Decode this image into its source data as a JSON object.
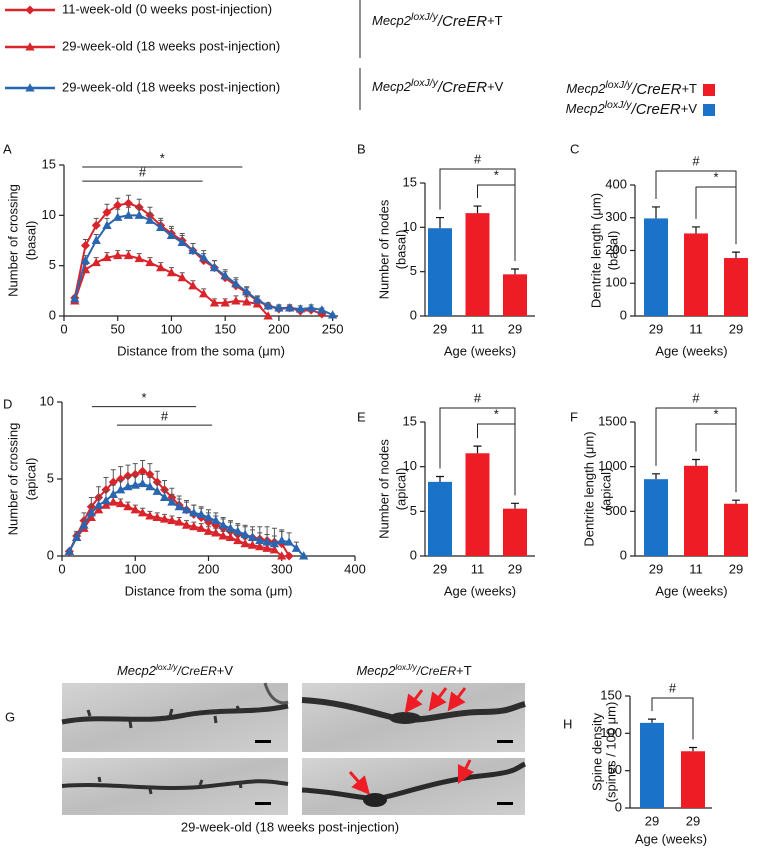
{
  "figure_legend": {
    "groups": [
      {
        "gene": "Mecp2",
        "allele": "loxJ/y",
        "driver": "/CreER",
        "treatment": "+T"
      },
      {
        "gene": "Mecp2",
        "allele": "loxJ/y",
        "driver": "/CreER",
        "treatment": "+V"
      }
    ]
  },
  "bar_legend": {
    "entries": [
      {
        "gene": "Mecp2",
        "allele": "loxJ/y",
        "driver": "/CreER",
        "treatment": "+T",
        "color": "#ee1c24"
      },
      {
        "gene": "Mecp2",
        "allele": "loxJ/y",
        "driver": "/CreER",
        "treatment": "+V",
        "color": "#1a73c8"
      }
    ]
  },
  "chart_data": [
    {
      "type": "line",
      "panel": "A",
      "xlabel": "Distance from the soma (μm)",
      "ylabel": [
        "Number of crossing",
        "(basal)"
      ],
      "x": [
        10,
        20,
        30,
        40,
        50,
        60,
        70,
        80,
        90,
        100,
        110,
        120,
        130,
        140,
        150,
        160,
        170,
        180,
        190,
        200,
        210,
        220,
        230,
        240,
        250
      ],
      "xlim": [
        0,
        255
      ],
      "xticks": [
        0,
        50,
        100,
        150,
        200,
        250
      ],
      "ylim": [
        0,
        15
      ],
      "yticks": [
        0,
        5,
        10,
        15
      ],
      "series": [
        {
          "name": "11-week-old (0 weeks post-injection)",
          "color": "#d9242b",
          "marker": "diamond",
          "values": [
            1.8,
            7,
            9,
            10.3,
            11,
            11.2,
            10.8,
            10,
            9,
            8.2,
            7.5,
            6.5,
            5.5,
            4.8,
            3.8,
            3,
            2.3,
            1.5,
            1,
            0.7,
            0.8,
            0.5,
            0.6,
            0.2,
            null
          ],
          "errors": [
            0.2,
            0.6,
            0.7,
            0.8,
            0.7,
            0.8,
            0.8,
            0.8,
            0.7,
            0.7,
            0.7,
            0.7,
            0.7,
            0.7,
            0.6,
            0.6,
            0.5,
            0.4,
            0.3,
            0.3,
            0.3,
            0.2,
            0.3,
            0.2,
            null
          ]
        },
        {
          "name": "29-week-old (18 weeks post-injection)",
          "color": "#d9242b",
          "marker": "triangle",
          "values": [
            1.5,
            4.6,
            5.3,
            5.8,
            6,
            6,
            5.7,
            5.3,
            4.8,
            4.3,
            3.8,
            3,
            2.2,
            1.3,
            1.3,
            1.5,
            1.4,
            1.2,
            0,
            null,
            null,
            null,
            null,
            null,
            null
          ],
          "errors": [
            0.2,
            0.5,
            0.5,
            0.5,
            0.5,
            0.5,
            0.5,
            0.5,
            0.5,
            0.5,
            0.5,
            0.5,
            0.5,
            0.4,
            0.4,
            0.5,
            0.5,
            0.4,
            0,
            null,
            null,
            null,
            null,
            null,
            null
          ]
        },
        {
          "name": "29-week-old (18 weeks post-injection)",
          "color": "#2a66b0",
          "marker": "triangle",
          "values": [
            1.7,
            5.5,
            7.5,
            9,
            9.8,
            10,
            10,
            9.5,
            8.8,
            8,
            7.3,
            6.5,
            5.8,
            4.8,
            4,
            3.2,
            2.4,
            1.6,
            1,
            0.8,
            0.8,
            0.7,
            0.8,
            0.6,
            0.1
          ],
          "errors": [
            0.2,
            0.5,
            0.6,
            0.7,
            0.8,
            0.8,
            0.8,
            0.7,
            0.7,
            0.7,
            0.7,
            0.7,
            0.7,
            0.7,
            0.6,
            0.6,
            0.5,
            0.4,
            0.3,
            0.3,
            0.3,
            0.3,
            0.3,
            0.2,
            0.1
          ]
        }
      ],
      "annotations": [
        {
          "text": "*",
          "x": [
            17,
            166
          ],
          "y": 14.8
        },
        {
          "text": "#",
          "x": [
            17,
            129
          ],
          "y": 13.4
        }
      ]
    },
    {
      "type": "bar",
      "panel": "B",
      "xlabel": "Age (weeks)",
      "ylabel": [
        "Number of nodes",
        "(basal)"
      ],
      "categories": [
        "29",
        "11",
        "29"
      ],
      "values": [
        9.9,
        11.6,
        4.7
      ],
      "errors": [
        1.2,
        0.8,
        0.6
      ],
      "colors": [
        "#1a73c8",
        "#ee1c24",
        "#ee1c24"
      ],
      "ylim": [
        0,
        15
      ],
      "yticks": [
        0,
        5,
        10,
        15
      ],
      "annotations": [
        {
          "text": "#",
          "between": [
            0,
            2
          ]
        },
        {
          "text": "*",
          "between": [
            1,
            2
          ]
        }
      ]
    },
    {
      "type": "bar",
      "panel": "C",
      "xlabel": "Age (weeks)",
      "ylabel": [
        "Dentrite length (μm)",
        "(basal)"
      ],
      "categories": [
        "29",
        "11",
        "29"
      ],
      "values": [
        298,
        252,
        177
      ],
      "errors": [
        35,
        20,
        18
      ],
      "colors": [
        "#1a73c8",
        "#ee1c24",
        "#ee1c24"
      ],
      "ylim": [
        0,
        400
      ],
      "yticks": [
        0,
        100,
        200,
        300,
        400
      ],
      "annotations": [
        {
          "text": "#",
          "between": [
            0,
            2
          ]
        },
        {
          "text": "*",
          "between": [
            1,
            2
          ]
        }
      ]
    },
    {
      "type": "line",
      "panel": "D",
      "xlabel": "Distance from the soma (μm)",
      "ylabel": [
        "Number of crossing",
        "(apical)"
      ],
      "x": [
        10,
        20,
        30,
        40,
        50,
        60,
        70,
        80,
        90,
        100,
        110,
        120,
        130,
        140,
        150,
        160,
        170,
        180,
        190,
        200,
        210,
        220,
        230,
        240,
        250,
        260,
        270,
        280,
        290,
        300,
        310,
        320,
        330
      ],
      "xlim": [
        0,
        400
      ],
      "xticks": [
        0,
        100,
        200,
        300,
        400
      ],
      "ylim": [
        0,
        10
      ],
      "yticks": [
        0,
        5,
        10
      ],
      "series": [
        {
          "color": "#d9242b",
          "marker": "diamond",
          "values": [
            0.3,
            1.3,
            2.3,
            3.2,
            3.8,
            4.3,
            4.8,
            5,
            5.2,
            5.3,
            5.5,
            5.3,
            4.8,
            4.3,
            3.8,
            3.3,
            3,
            2.7,
            2.5,
            2.2,
            2,
            1.8,
            1.6,
            1.4,
            1.3,
            1.2,
            1.1,
            1,
            0.9,
            0.8,
            0,
            null,
            null
          ],
          "errors": [
            0.1,
            0.3,
            0.5,
            0.6,
            0.7,
            0.8,
            0.8,
            0.8,
            0.7,
            0.7,
            0.7,
            0.7,
            0.7,
            0.6,
            0.6,
            0.6,
            0.6,
            0.6,
            0.6,
            0.6,
            0.6,
            0.6,
            0.6,
            0.6,
            0.7,
            0.7,
            0.8,
            0.9,
            0.9,
            0.9,
            0,
            null,
            null
          ]
        },
        {
          "color": "#d9242b",
          "marker": "triangle",
          "values": [
            0.3,
            1.2,
            1.8,
            2.5,
            3,
            3.3,
            3.5,
            3.4,
            3.2,
            3,
            2.8,
            2.6,
            2.5,
            2.4,
            2.3,
            2.2,
            2,
            1.9,
            1.8,
            1.6,
            1.5,
            1.3,
            1.2,
            1,
            0.8,
            0.7,
            0.6,
            0.5,
            0.4,
            0,
            null,
            null,
            null
          ],
          "errors": [
            0.1,
            0.2,
            0.3,
            0.3,
            0.3,
            0.3,
            0.3,
            0.3,
            0.3,
            0.3,
            0.3,
            0.3,
            0.3,
            0.3,
            0.3,
            0.3,
            0.3,
            0.3,
            0.3,
            0.3,
            0.3,
            0.3,
            0.3,
            0.3,
            0.3,
            0.3,
            0.3,
            0.3,
            0.3,
            0,
            null,
            null,
            null
          ]
        },
        {
          "color": "#2a66b0",
          "marker": "triangle",
          "values": [
            0.3,
            1.2,
            2,
            2.8,
            3.3,
            3.6,
            4,
            4.3,
            4.5,
            4.6,
            4.7,
            4.5,
            4.2,
            3.8,
            3.5,
            3.2,
            3,
            2.8,
            2.7,
            2.5,
            2.3,
            2,
            1.8,
            1.6,
            1.4,
            1.2,
            1,
            0.9,
            0.8,
            1,
            0.9,
            0.5,
            0
          ],
          "errors": [
            0.1,
            0.3,
            0.4,
            0.5,
            0.6,
            0.6,
            0.6,
            0.6,
            0.6,
            0.6,
            0.6,
            0.6,
            0.5,
            0.5,
            0.5,
            0.5,
            0.5,
            0.5,
            0.5,
            0.5,
            0.5,
            0.5,
            0.5,
            0.5,
            0.5,
            0.5,
            0.5,
            0.5,
            0.5,
            0.6,
            0.6,
            0.4,
            0
          ]
        }
      ],
      "annotations": [
        {
          "text": "*",
          "x": [
            41,
            183
          ],
          "y": 9.7
        },
        {
          "text": "#",
          "x": [
            75,
            205
          ],
          "y": 8.5
        }
      ]
    },
    {
      "type": "bar",
      "panel": "E",
      "xlabel": "Age (weeks)",
      "ylabel": [
        "Number of nodes",
        "(apical)"
      ],
      "categories": [
        "29",
        "11",
        "29"
      ],
      "values": [
        8.3,
        11.5,
        5.3
      ],
      "errors": [
        0.6,
        0.8,
        0.6
      ],
      "colors": [
        "#1a73c8",
        "#ee1c24",
        "#ee1c24"
      ],
      "ylim": [
        0,
        15
      ],
      "yticks": [
        0,
        5,
        10,
        15
      ],
      "annotations": [
        {
          "text": "#",
          "between": [
            0,
            2
          ]
        },
        {
          "text": "*",
          "between": [
            1,
            2
          ]
        }
      ]
    },
    {
      "type": "bar",
      "panel": "F",
      "xlabel": "Age (weeks)",
      "ylabel": [
        "Dentrite length (μm)",
        "(apical)"
      ],
      "categories": [
        "29",
        "11",
        "29"
      ],
      "values": [
        860,
        1010,
        585
      ],
      "errors": [
        60,
        70,
        40
      ],
      "colors": [
        "#1a73c8",
        "#ee1c24",
        "#ee1c24"
      ],
      "ylim": [
        0,
        1500
      ],
      "yticks": [
        0,
        500,
        1000,
        1500
      ],
      "annotations": [
        {
          "text": "#",
          "between": [
            0,
            2
          ]
        },
        {
          "text": "*",
          "between": [
            1,
            2
          ]
        }
      ]
    },
    {
      "type": "bar",
      "panel": "H",
      "xlabel": "Age (weeks)",
      "ylabel": [
        "Spine density",
        "(spines / 100 μm)"
      ],
      "categories": [
        "29",
        "29"
      ],
      "values": [
        114,
        76
      ],
      "errors": [
        5,
        5
      ],
      "colors": [
        "#1a73c8",
        "#ee1c24"
      ],
      "ylim": [
        0,
        150
      ],
      "yticks": [
        0,
        50,
        100,
        150
      ],
      "annotations": [
        {
          "text": "#",
          "between": [
            0,
            1
          ]
        }
      ]
    }
  ],
  "image_panel": {
    "panel": "G",
    "columns": [
      {
        "gene": "Mecp2",
        "allele": "loxJ/y",
        "driver": "/CreER",
        "treatment": "+V"
      },
      {
        "gene": "Mecp2",
        "allele": "loxJ/y",
        "driver": "/CreER",
        "treatment": "+T"
      }
    ],
    "caption": "29-week-old (18 weeks post-injection)"
  }
}
